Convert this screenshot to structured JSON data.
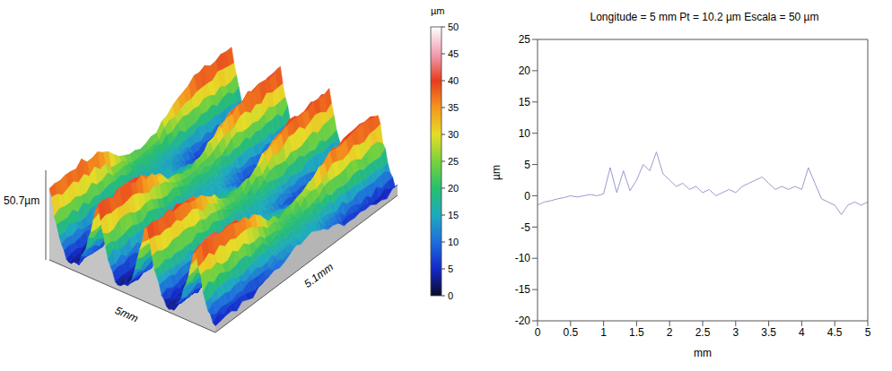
{
  "chart_data": [
    {
      "type": "surface",
      "x_label": "5mm",
      "y_label": "5.1mm",
      "z_label": "50.7µm",
      "colorbar": {
        "label": "µm",
        "range": [
          0,
          50
        ],
        "ticks": [
          0,
          5,
          10,
          15,
          20,
          25,
          30,
          35,
          40,
          45,
          50
        ]
      }
    },
    {
      "type": "line",
      "title": "Longitude = 5 mm Pt = 10.2 µm Escala = 50 µm",
      "x_label": "mm",
      "y_label": "µm",
      "x": [
        0,
        0.1,
        0.2,
        0.3,
        0.4,
        0.5,
        0.6,
        0.7,
        0.8,
        0.9,
        1.0,
        1.1,
        1.2,
        1.3,
        1.4,
        1.5,
        1.6,
        1.7,
        1.8,
        1.9,
        2.0,
        2.1,
        2.2,
        2.3,
        2.4,
        2.5,
        2.6,
        2.7,
        2.8,
        2.9,
        3.0,
        3.1,
        3.2,
        3.3,
        3.4,
        3.5,
        3.6,
        3.7,
        3.8,
        3.9,
        4.0,
        4.1,
        4.2,
        4.3,
        4.4,
        4.5,
        4.6,
        4.7,
        4.8,
        4.9,
        5.0
      ],
      "values": [
        -1.5,
        -1,
        -0.8,
        -0.5,
        -0.3,
        0,
        -0.2,
        0,
        0.2,
        0,
        0.3,
        4.5,
        0.5,
        4,
        0.8,
        2.5,
        5,
        4,
        7,
        3.5,
        2.5,
        1.5,
        2,
        1,
        1.5,
        0.5,
        1,
        0,
        0.5,
        1,
        0.5,
        1.5,
        2,
        2.5,
        3,
        2,
        1,
        1.5,
        1,
        1.5,
        1,
        4.5,
        2,
        -0.5,
        -1,
        -1.5,
        -3,
        -1.5,
        -1,
        -1.5,
        -1
      ],
      "color": "#9a9ad2",
      "xlim": [
        0,
        5
      ],
      "xticks": [
        0,
        0.5,
        1,
        1.5,
        2,
        2.5,
        3,
        3.5,
        4,
        4.5,
        5
      ],
      "ylim": [
        -20,
        25
      ],
      "yticks": [
        -20,
        -15,
        -10,
        -5,
        0,
        5,
        10,
        15,
        20,
        25
      ],
      "grid": false
    }
  ]
}
